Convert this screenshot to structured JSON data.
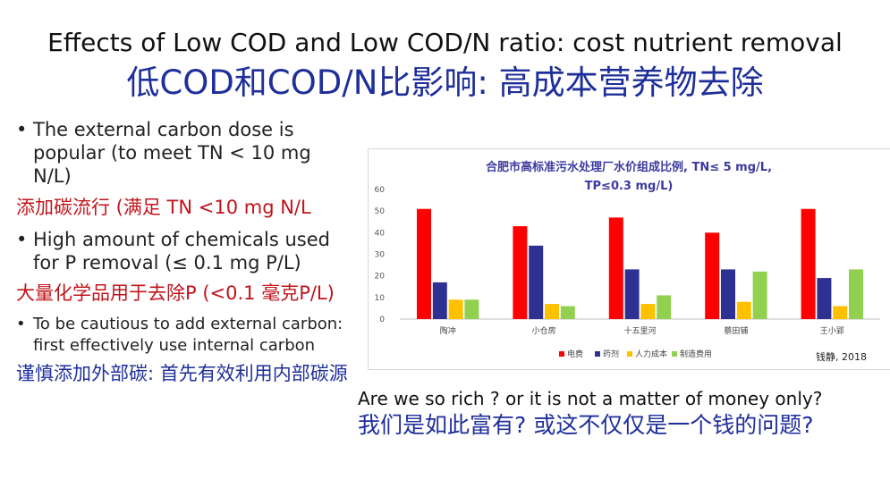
{
  "slide": {
    "title_en": "Effects of Low COD and Low COD/N ratio: cost nutrient removal",
    "title_cn": "低COD和COD/N比影响: 高成本营养物去除"
  },
  "left": {
    "bullet1": "The external carbon dose is popular (to meet TN < 10 mg N/L)",
    "cn1": "添加碳流行 (满足 TN <10 mg N/L",
    "bullet2": "High amount of chemicals used for P removal  (≤   0.1 mg P/L)",
    "cn2": "大量化学品用于去除P (<0.1 毫克P/L)",
    "bullet3": "To be cautious to add external carbon: first effectively use internal carbon",
    "cn3": "谨慎添加外部碳: 首先有效利用内部碳源"
  },
  "citation": "钱静, 2018",
  "question_en": "Are we so rich ? or it is not a matter of money only?",
  "question_cn": "我们是如此富有? 或这不仅仅是一个钱的问题?",
  "colors": {
    "title_blue": "#1f2f9a",
    "red_text": "#c0141b",
    "chart_title": "#3b3ba0"
  },
  "chart_data": {
    "type": "bar",
    "title": "合肥市高标准污水处理厂水价组成比例, TN≤ 5 mg/L, TP≤0.3 mg/L)",
    "title_line1": "合肥市高标准污水处理厂水价组成比例, TN≤ 5 mg/L,",
    "title_line2": "TP≤0.3 mg/L)",
    "categories": [
      "陶冲",
      "小仓房",
      "十五里河",
      "蔡田铺",
      "王小郢"
    ],
    "series": [
      {
        "name": "电费",
        "color": "#ff0000",
        "values": [
          51,
          43,
          47,
          40,
          51
        ]
      },
      {
        "name": "药剂",
        "color": "#2e3192",
        "values": [
          17,
          34,
          23,
          23,
          19
        ]
      },
      {
        "name": "人力成本",
        "color": "#ffc000",
        "values": [
          9,
          7,
          7,
          8,
          6
        ]
      },
      {
        "name": "制造费用",
        "color": "#92d050",
        "values": [
          9,
          6,
          11,
          22,
          23
        ]
      }
    ],
    "ylim": [
      0,
      60
    ],
    "yticks": [
      0,
      10,
      20,
      30,
      40,
      50,
      60
    ],
    "grid": false,
    "legend_position": "bottom"
  }
}
